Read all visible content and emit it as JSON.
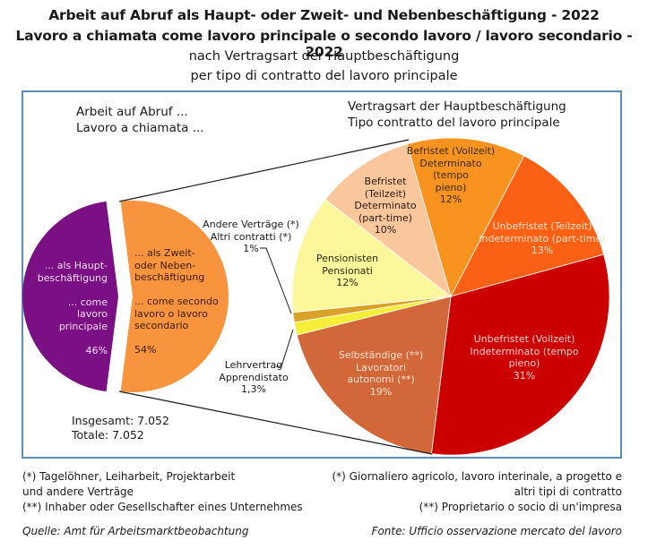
{
  "title": {
    "line1": "Arbeit auf Abruf als Haupt- oder Zweit- und Nebenbeschäftigung - 2022",
    "line2": "Lavoro a chiamata come lavoro principale o secondo lavoro / lavoro secondario - 2022",
    "line3": "nach Vertragsart der Hauptbeschäftigung",
    "line4": "per tipo di contratto del lavoro principale"
  },
  "left_heading": {
    "line1": "Arbeit auf Abruf ...",
    "line2": "Lavoro a chiamata ..."
  },
  "right_heading": {
    "line1": "Vertragsart der Hauptbeschäftigung",
    "line2": "Tipo contratto del lavoro principale"
  },
  "total": {
    "de": "Insgesamt: 7.052",
    "it": "Totale: 7.052"
  },
  "footnotes": {
    "de": "(*) Tagelöhner, Leiharbeit, Projektarbeit\nund andere Verträge\n(**) Inhaber oder Gesellschafter eines Unternehmes",
    "it": "(*) Giornaliero agricolo, lavoro interinale, a progetto e\naltri tipi di contratto\n(**) Proprietario o socio di un'impresa"
  },
  "source": {
    "de": "Quelle: Amt für Arbeitsmarktbeobachtung",
    "it": "Fonte: Ufficio osservazione mercato del lavoro"
  },
  "chart_data": [
    {
      "type": "pie",
      "title": "Arbeit auf Abruf ... / Lavoro a chiamata ...",
      "total": 7052,
      "slices": [
        {
          "label": "... als Hauptbeschäftigung / ... come lavoro principale",
          "text": "... als Haupt-\nbeschäftigung\n\n... come lavoro\nprincipale\n\n46%",
          "value": 46,
          "color": "#7b0f84"
        },
        {
          "label": "... als Zweit- oder Nebenbeschäftigung / ... come secondo lavoro o lavoro secondario",
          "text": "... als Zweit-\noder Neben-\nbeschäftigung\n\n... come secondo\nlavoro o lavoro\nsecondario\n\n54%",
          "value": 54,
          "color": "#f7943d"
        }
      ]
    },
    {
      "type": "pie",
      "title": "Vertragsart der Hauptbeschäftigung / Tipo contratto del lavoro principale",
      "slices": [
        {
          "label": "Befristet (Vollzeit) / Determinato (tempo pieno)",
          "text": "Befristet (Vollzeit)\nDeterminato (tempo\npieno)\n12%",
          "value": 12,
          "color": "#f7931e",
          "text_color": "#3a2a10"
        },
        {
          "label": "Unbefristet (Teilzeit) / Indeterminato (part-time)",
          "text": "Unbefristet (Teilzeit)\nIndeterminato (part-time)\n13%",
          "value": 13,
          "color": "#fa6114",
          "text_color": "#fde3cc"
        },
        {
          "label": "Unbefristet (Vollzeit) / Indeterminato (tempo pieno)",
          "text": "Unbefristet (Vollzeit)\nIndeterminato (tempo\npieno)\n31%",
          "value": 31,
          "color": "#cc0000",
          "text_color": "#fbd3d3"
        },
        {
          "label": "Selbständige (**) / Lavoratori autonomi (**)",
          "text": "Selbständige (**)\nLavoratori\nautonomi (**)\n19%",
          "value": 19,
          "color": "#d2683a",
          "text_color": "#fde2cf"
        },
        {
          "label": "Lehrvertrag / Apprendistato",
          "text": "Lehrvertrag\nApprendistato\n1,3%",
          "value": 1.3,
          "color": "#f5ef3a",
          "text_color": "#1a1a1a"
        },
        {
          "label": "Andere Verträge (*) / Altri contratti (*)",
          "text": "Andere Verträge (*)\nAltri contratti (*)\n1%",
          "value": 1,
          "color": "#dba22a",
          "text_color": "#1a1a1a"
        },
        {
          "label": "Pensionisten / Pensionati",
          "text": "Pensionisten\nPensionati\n12%",
          "value": 12,
          "color": "#fbf79a",
          "text_color": "#2a2a10"
        },
        {
          "label": "Befristet (Teilzeit) / Determinato (part-time)",
          "text": "Befristet\n(Teilzeit)\nDeterminato\n(part-time)\n10%",
          "value": 10,
          "color": "#f9c79b",
          "text_color": "#2a1a10"
        }
      ]
    }
  ]
}
